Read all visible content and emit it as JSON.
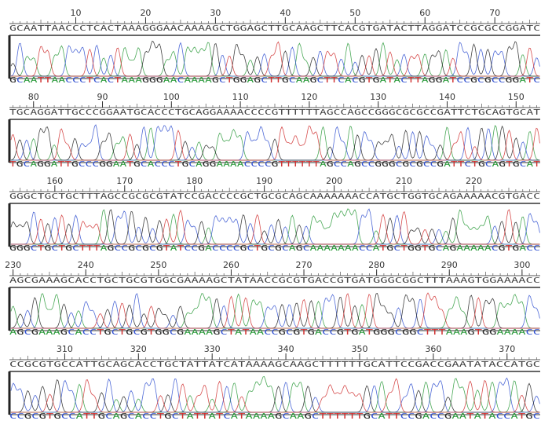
{
  "rows": [
    {
      "ticks": [
        10,
        20,
        30,
        40,
        50,
        60,
        70
      ],
      "sequence": "GCAATTAACCCTCACTAAAGGGAACAAAAGCTGGAGCTTGCAAGCTTCACGTGATACTTAGGATCCGCGCCGGATC"
    },
    {
      "ticks": [
        80,
        90,
        100,
        110,
        120,
        130,
        140,
        150
      ],
      "sequence": "TGCAGGATTGCCCGGAATGCACCCTGCAGGAAAACCCCGTTTTTTAGCCAGCCGGGCGCGCCGATTCTGCAGTGCAT"
    },
    {
      "ticks": [
        160,
        170,
        180,
        190,
        200,
        210,
        220
      ],
      "sequence": "GGGCTGCTGCTTTAGCCGCGCGTATCCGACCCCGCTGCGCAGCAAAAAAACCATGCTGGTGCAGAAAAACGTGACC"
    },
    {
      "ticks": [
        230,
        240,
        250,
        260,
        270,
        280,
        290,
        300
      ],
      "sequence": "AGCGAAAGCACCTGCTGCGTGGCGAAAAGCTATAACCGCGTGACCGTGATGGGCGGCTTTAAAGTGGAAAACC"
    },
    {
      "ticks": [
        310,
        320,
        330,
        340,
        350,
        360,
        370
      ],
      "sequence": "CCGCGTGCCATTGCAGCACCTGCTATTATCATAAAAGCAAGCTTTTTTGCATTCCGACCGAATATACCATGC"
    }
  ]
}
